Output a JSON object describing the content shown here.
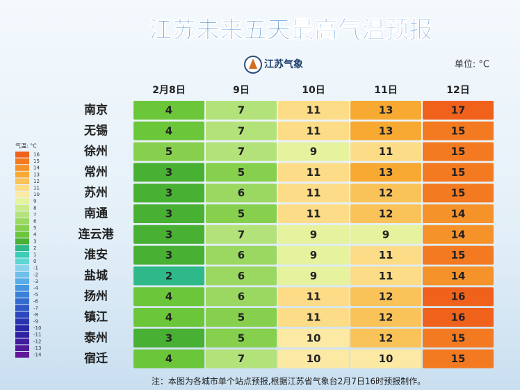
{
  "header": {
    "title": "江苏未来五天最高气温预报",
    "logo": "江苏气象",
    "unit": "单位: °C"
  },
  "table": {
    "columns": [
      "2月8日",
      "9日",
      "10日",
      "11日",
      "12日"
    ],
    "rows": [
      {
        "city": "南京",
        "values": [
          4,
          7,
          11,
          13,
          17
        ]
      },
      {
        "city": "无锡",
        "values": [
          4,
          7,
          11,
          13,
          15
        ]
      },
      {
        "city": "徐州",
        "values": [
          5,
          7,
          9,
          11,
          15
        ]
      },
      {
        "city": "常州",
        "values": [
          3,
          5,
          11,
          13,
          15
        ]
      },
      {
        "city": "苏州",
        "values": [
          3,
          6,
          11,
          12,
          15
        ]
      },
      {
        "city": "南通",
        "values": [
          3,
          5,
          11,
          12,
          14
        ]
      },
      {
        "city": "连云港",
        "values": [
          3,
          7,
          9,
          9,
          14
        ]
      },
      {
        "city": "淮安",
        "values": [
          3,
          6,
          9,
          11,
          15
        ]
      },
      {
        "city": "盐城",
        "values": [
          2,
          6,
          9,
          11,
          14
        ]
      },
      {
        "city": "扬州",
        "values": [
          4,
          6,
          11,
          12,
          16
        ]
      },
      {
        "city": "镇江",
        "values": [
          4,
          5,
          11,
          12,
          16
        ]
      },
      {
        "city": "泰州",
        "values": [
          3,
          5,
          10,
          12,
          15
        ]
      },
      {
        "city": "宿迁",
        "values": [
          4,
          7,
          10,
          10,
          15
        ]
      }
    ]
  },
  "legend": {
    "title": "气温: °C",
    "items": [
      {
        "value": 16,
        "color": "#f0621c"
      },
      {
        "value": 15,
        "color": "#f47a22"
      },
      {
        "value": 14,
        "color": "#f6922a"
      },
      {
        "value": 13,
        "color": "#f7a932"
      },
      {
        "value": 12,
        "color": "#fac35a"
      },
      {
        "value": 11,
        "color": "#fddc88"
      },
      {
        "value": 10,
        "color": "#fbe9a4"
      },
      {
        "value": 9,
        "color": "#e6f29e"
      },
      {
        "value": 8,
        "color": "#cdea8c"
      },
      {
        "value": 7,
        "color": "#b4e27a"
      },
      {
        "value": 6,
        "color": "#9bd862"
      },
      {
        "value": 5,
        "color": "#86d04e"
      },
      {
        "value": 4,
        "color": "#6cc63a"
      },
      {
        "value": 3,
        "color": "#48b032"
      },
      {
        "value": 2,
        "color": "#2fb98a"
      },
      {
        "value": 1,
        "color": "#3ccdb6"
      },
      {
        "value": 0,
        "color": "#5ed6d2"
      },
      {
        "value": -1,
        "color": "#88d2ee"
      },
      {
        "value": -2,
        "color": "#6ebfea"
      },
      {
        "value": -3,
        "color": "#58ace6"
      },
      {
        "value": -4,
        "color": "#4696e0"
      },
      {
        "value": -5,
        "color": "#3b80d8"
      },
      {
        "value": -6,
        "color": "#346bcf"
      },
      {
        "value": -7,
        "color": "#3058c6"
      },
      {
        "value": -8,
        "color": "#2c46bd"
      },
      {
        "value": -9,
        "color": "#2a34b0"
      },
      {
        "value": -10,
        "color": "#2a26a8"
      },
      {
        "value": -11,
        "color": "#3220a2"
      },
      {
        "value": -12,
        "color": "#421c9e"
      },
      {
        "value": -13,
        "color": "#521a9a"
      },
      {
        "value": -14,
        "color": "#621898"
      }
    ]
  },
  "note": "注：本图为各城市单个站点预报,根据江苏省气象台2月7日16时预报制作。"
}
